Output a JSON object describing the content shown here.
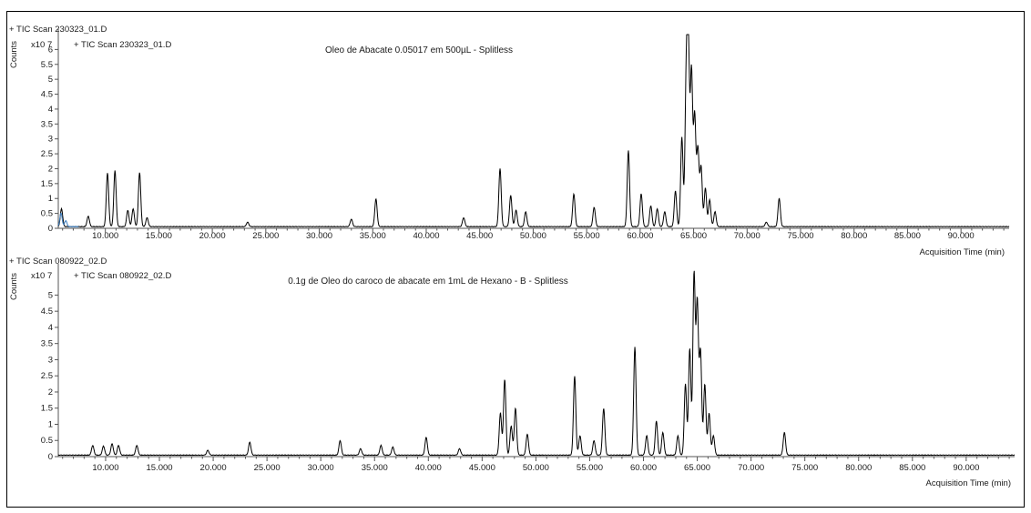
{
  "chart_data": [
    {
      "type": "line",
      "header_outer": "+ TIC Scan 230323_01.D",
      "header_inner": "+ TIC Scan 230323_01.D",
      "title": "Oleo de Abacate 0.05017 em 500µL - Splitless",
      "y_multiplier": "x10 7",
      "ylabel": "Counts",
      "xlabel": "Acquisition Time (min)",
      "xlim": [
        5.6,
        94.5
      ],
      "ylim": [
        0,
        6.5
      ],
      "x_ticks": [
        "10.000",
        "15.000",
        "20.000",
        "25.000",
        "30.000",
        "35.000",
        "40.000",
        "45.000",
        "50.000",
        "55.000",
        "60.000",
        "65.000",
        "70.000",
        "75.000",
        "80.000",
        "85.000",
        "90.000"
      ],
      "y_ticks": [
        "0",
        "0.5",
        "1",
        "1.5",
        "2",
        "2.5",
        "3",
        "3.5",
        "4",
        "4.5",
        "5",
        "5.5",
        "6"
      ],
      "baseline": 0.05,
      "series": [
        {
          "color": "#000000",
          "peaks": [
            [
              5.9,
              0.6
            ],
            [
              8.4,
              0.35
            ],
            [
              10.2,
              1.8
            ],
            [
              10.9,
              1.88
            ],
            [
              12.1,
              0.55
            ],
            [
              12.6,
              0.6
            ],
            [
              13.2,
              1.82
            ],
            [
              13.9,
              0.3
            ],
            [
              23.3,
              0.15
            ],
            [
              33.0,
              0.25
            ],
            [
              35.3,
              0.93
            ],
            [
              43.5,
              0.3
            ],
            [
              46.9,
              1.95
            ],
            [
              47.9,
              1.05
            ],
            [
              48.4,
              0.55
            ],
            [
              49.3,
              0.5
            ],
            [
              53.8,
              1.1
            ],
            [
              55.7,
              0.65
            ],
            [
              58.9,
              2.55
            ],
            [
              60.1,
              1.1
            ],
            [
              61.0,
              0.7
            ],
            [
              61.6,
              0.6
            ],
            [
              62.3,
              0.5
            ],
            [
              63.3,
              1.2
            ],
            [
              63.9,
              3.0
            ],
            [
              64.3,
              4.5
            ],
            [
              64.5,
              6.1
            ],
            [
              64.8,
              5.2
            ],
            [
              65.1,
              3.7
            ],
            [
              65.4,
              2.6
            ],
            [
              65.7,
              2.0
            ],
            [
              66.1,
              1.3
            ],
            [
              66.5,
              0.9
            ],
            [
              67.0,
              0.5
            ],
            [
              71.8,
              0.15
            ],
            [
              73.0,
              0.95
            ]
          ]
        },
        {
          "color": "#3d7ebf",
          "peaks": [
            [
              5.85,
              0.45
            ],
            [
              6.3,
              0.2
            ]
          ]
        }
      ]
    },
    {
      "type": "line",
      "header_outer": "+ TIC Scan 080922_02.D",
      "header_inner": "+ TIC Scan 080922_02.D",
      "title": "0.1g de Oleo do caroco de abacate em 1mL de Hexano - B - Splitless",
      "y_multiplier": "x10 7",
      "ylabel": "Counts",
      "xlabel": "Acquisition Time (min)",
      "xlim": [
        5.6,
        94.5
      ],
      "ylim": [
        0,
        5.8
      ],
      "x_ticks": [
        "10.000",
        "15.000",
        "20.000",
        "25.000",
        "30.000",
        "35.000",
        "40.000",
        "45.000",
        "50.000",
        "55.000",
        "60.000",
        "65.000",
        "70.000",
        "75.000",
        "80.000",
        "85.000",
        "90.000"
      ],
      "y_ticks": [
        "0",
        "0.5",
        "1",
        "1.5",
        "2",
        "2.5",
        "3",
        "3.5",
        "4",
        "4.5",
        "5"
      ],
      "baseline": 0.04,
      "series": [
        {
          "color": "#000000",
          "peaks": [
            [
              8.8,
              0.3
            ],
            [
              9.8,
              0.28
            ],
            [
              10.6,
              0.35
            ],
            [
              11.2,
              0.3
            ],
            [
              12.9,
              0.3
            ],
            [
              19.5,
              0.15
            ],
            [
              23.4,
              0.4
            ],
            [
              31.8,
              0.45
            ],
            [
              33.7,
              0.2
            ],
            [
              35.6,
              0.3
            ],
            [
              36.7,
              0.25
            ],
            [
              39.8,
              0.55
            ],
            [
              42.9,
              0.2
            ],
            [
              46.7,
              1.3
            ],
            [
              47.1,
              2.35
            ],
            [
              47.7,
              0.9
            ],
            [
              48.1,
              1.45
            ],
            [
              49.2,
              0.65
            ],
            [
              53.6,
              2.45
            ],
            [
              54.1,
              0.6
            ],
            [
              55.4,
              0.45
            ],
            [
              56.3,
              1.45
            ],
            [
              59.2,
              3.35
            ],
            [
              60.3,
              0.6
            ],
            [
              61.2,
              1.05
            ],
            [
              61.8,
              0.7
            ],
            [
              63.2,
              0.6
            ],
            [
              63.9,
              2.2
            ],
            [
              64.3,
              3.3
            ],
            [
              64.7,
              5.6
            ],
            [
              65.0,
              4.7
            ],
            [
              65.3,
              3.2
            ],
            [
              65.7,
              2.2
            ],
            [
              66.1,
              1.3
            ],
            [
              66.5,
              0.6
            ],
            [
              73.1,
              0.7
            ]
          ]
        }
      ]
    }
  ]
}
